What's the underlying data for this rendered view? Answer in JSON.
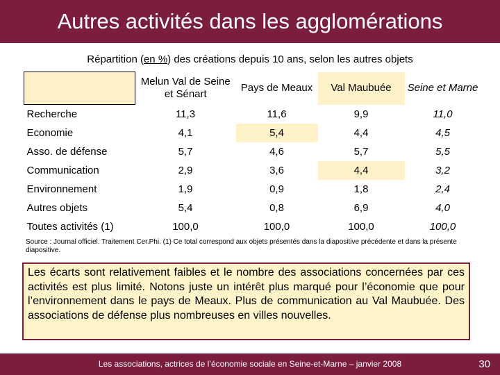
{
  "title": "Autres activités dans les agglomérations",
  "subtitle": {
    "before": "Répartition (",
    "underlined": "en %",
    "after": ") des créations depuis 10 ans, selon les autres objets"
  },
  "table": {
    "columns": [
      "Melun Val de Seine et Sénart",
      "Pays de Meaux",
      "Val Maubuée",
      "Seine et Marne"
    ],
    "rows": [
      {
        "label": "Recherche",
        "values": [
          "11,3",
          "11,6",
          "9,9",
          "11,0"
        ]
      },
      {
        "label": "Economie",
        "values": [
          "4,1",
          "5,4",
          "4,4",
          "4,5"
        ]
      },
      {
        "label": "Asso. de défense",
        "values": [
          "5,7",
          "4,6",
          "5,7",
          "5,5"
        ]
      },
      {
        "label": "Communication",
        "values": [
          "2,9",
          "3,6",
          "4,4",
          "3,2"
        ]
      },
      {
        "label": "Environnement",
        "values": [
          "1,9",
          "0,9",
          "1,8",
          "2,4"
        ]
      },
      {
        "label": "Autres objets",
        "values": [
          "5,4",
          "0,8",
          "6,9",
          "4,0"
        ]
      },
      {
        "label": "Toutes activités (1)",
        "values": [
          "100,0",
          "100,0",
          "100,0",
          "100,0"
        ]
      }
    ]
  },
  "source": "Source : Journal officiel. Traitement Cer.Phi. (1) Ce total correspond aux objets présentés dans la diapositive précédente et dans la présente diapositive.",
  "comment": "Les écarts sont relativement faibles et le nombre des associations concernées par ces activités est plus limité. Notons juste un intérêt plus marqué pour l’économie que pour l’environnement dans le pays de Meaux. Plus de communication au Val Maubuée. Des associations de défense plus nombreuses en villes nouvelles.",
  "footer": "Les associations, actrices de l’économie sociale en Seine-et-Marne – janvier 2008",
  "page_number": "30",
  "colors": {
    "brand": "#7a1e3c",
    "highlight": "#fff2c8"
  }
}
